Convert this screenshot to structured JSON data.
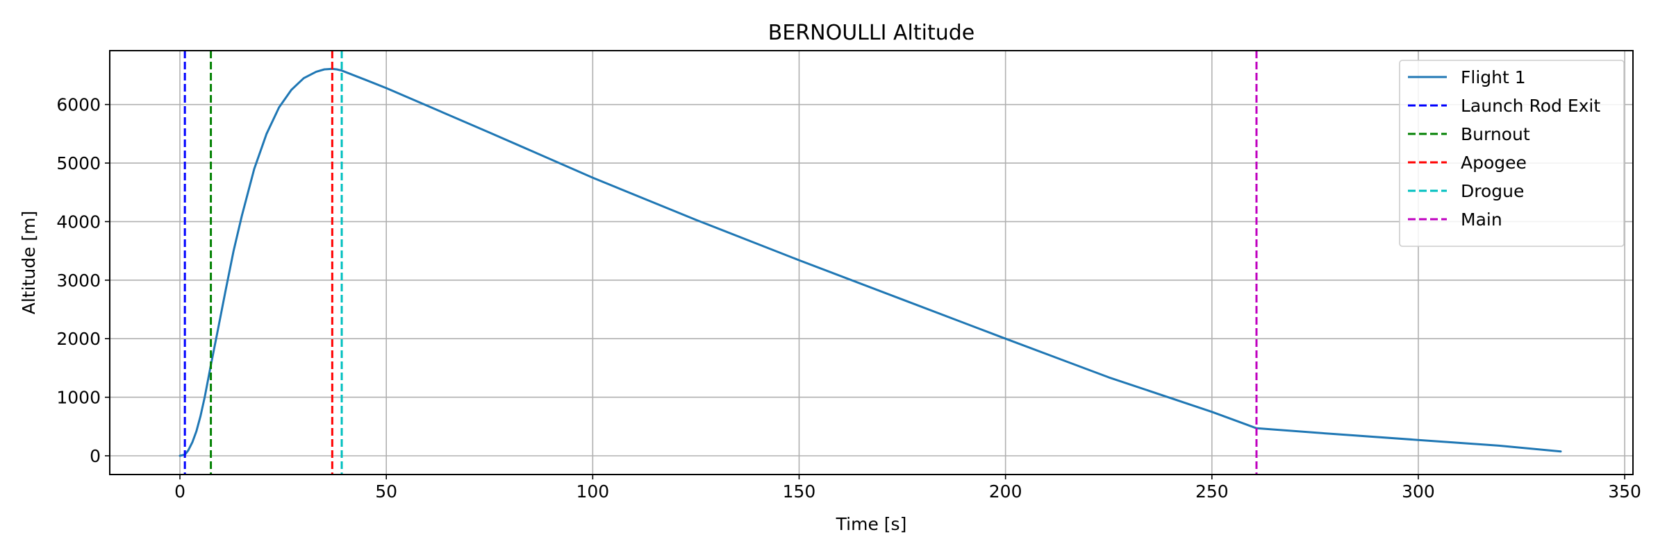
{
  "chart_data": {
    "type": "line",
    "title": "BERNOULLI Altitude",
    "xlabel": "Time [s]",
    "ylabel": "Altitude [m]",
    "xlim": [
      -17,
      352
    ],
    "ylim": [
      -320,
      6920
    ],
    "xticks": [
      0,
      50,
      100,
      150,
      200,
      250,
      300,
      350
    ],
    "yticks": [
      0,
      1000,
      2000,
      3000,
      4000,
      5000,
      6000
    ],
    "grid": true,
    "legend_position": "top-right",
    "series": [
      {
        "name": "Flight 1",
        "color": "#1f77b4",
        "style": "solid",
        "x": [
          0,
          1.2,
          2,
          3,
          4,
          5,
          6,
          7.5,
          9,
          11,
          13,
          15,
          18,
          21,
          24,
          27,
          30,
          33,
          35,
          36.9,
          38,
          39.2,
          45,
          50,
          75,
          100,
          125,
          150,
          175,
          200,
          225,
          250,
          260.8,
          280,
          300,
          320,
          334.5
        ],
        "y": [
          0,
          20,
          90,
          230,
          420,
          680,
          1000,
          1550,
          2080,
          2800,
          3500,
          4100,
          4900,
          5500,
          5950,
          6250,
          6450,
          6560,
          6600,
          6610,
          6600,
          6580,
          6420,
          6280,
          5520,
          4750,
          4030,
          3340,
          2670,
          2000,
          1340,
          750,
          470,
          370,
          270,
          170,
          75
        ]
      }
    ],
    "events": [
      {
        "name": "Launch Rod Exit",
        "x": 1.2,
        "color": "#0000ff",
        "style": "dashed"
      },
      {
        "name": "Burnout",
        "x": 7.5,
        "color": "#008000",
        "style": "dashed"
      },
      {
        "name": "Apogee",
        "x": 36.9,
        "color": "#ff0000",
        "style": "dashed"
      },
      {
        "name": "Drogue",
        "x": 39.2,
        "color": "#00bfbf",
        "style": "dashed"
      },
      {
        "name": "Main",
        "x": 260.8,
        "color": "#bf00bf",
        "style": "dashed"
      }
    ],
    "colors": {
      "grid": "#b0b0b0",
      "axes": "#000000",
      "background": "#ffffff"
    }
  }
}
